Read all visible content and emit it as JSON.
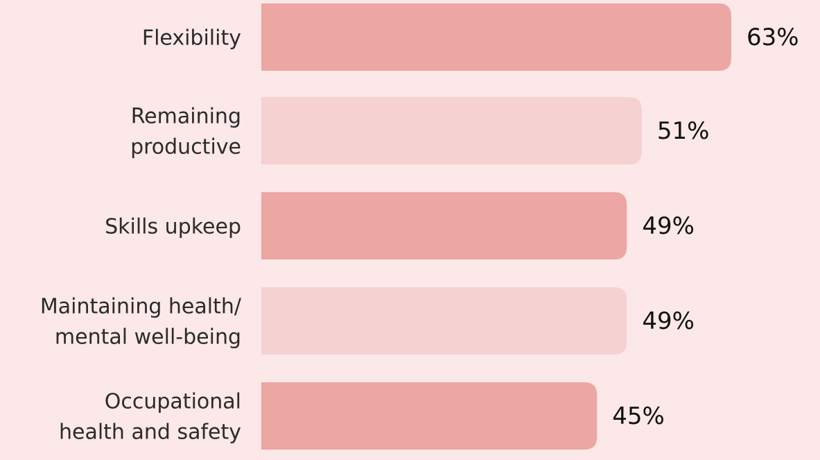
{
  "chart_data": {
    "type": "bar",
    "orientation": "horizontal",
    "categories": [
      "Flexibility",
      "Remaining\nproductive",
      "Skills upkeep",
      "Maintaining health/\nmental well-being",
      "Occupational\nhealth and safety"
    ],
    "values": [
      63,
      51,
      49,
      49,
      45
    ],
    "value_labels": [
      "63%",
      "51%",
      "49%",
      "49%",
      "45%"
    ],
    "colors": [
      "#eca6a3",
      "#f5d1d1",
      "#eca6a3",
      "#f5d1d1",
      "#eca6a3"
    ],
    "background": "#fce8e8"
  }
}
